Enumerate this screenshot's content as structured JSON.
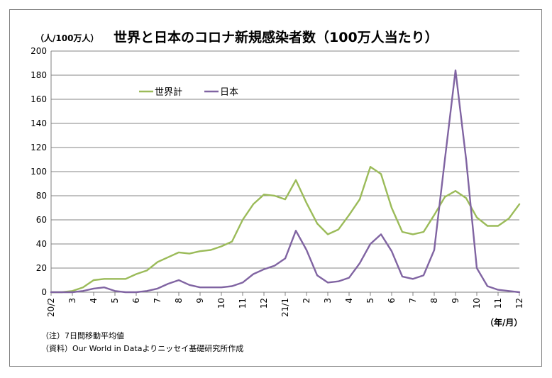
{
  "chart_data": {
    "type": "line",
    "title": "世界と日本のコロナ新規感染者数（100万人当たり）",
    "ylabel": "（人/100万人）",
    "xlabel": "（年/月）",
    "ylim": [
      0,
      200
    ],
    "yticks": [
      0,
      20,
      40,
      60,
      80,
      100,
      120,
      140,
      160,
      180,
      200
    ],
    "grid": true,
    "legend_position": "top-left",
    "x_tick_labels": [
      "20/2",
      "3",
      "4",
      "5",
      "6",
      "7",
      "8",
      "9",
      "10",
      "11",
      "12",
      "21/1",
      "2",
      "3",
      "4",
      "5",
      "6",
      "7",
      "8",
      "9",
      "10",
      "11",
      "12"
    ],
    "x": [
      "20/2",
      "20/2.5",
      "20/3",
      "20/3.5",
      "20/4",
      "20/4.5",
      "20/5",
      "20/5.5",
      "20/6",
      "20/6.5",
      "20/7",
      "20/7.5",
      "20/8",
      "20/8.5",
      "20/9",
      "20/9.5",
      "20/10",
      "20/10.5",
      "20/11",
      "20/11.5",
      "20/12",
      "20/12.5",
      "21/1",
      "21/1.5",
      "21/2",
      "21/2.5",
      "21/3",
      "21/3.5",
      "21/4",
      "21/4.5",
      "21/5",
      "21/5.5",
      "21/6",
      "21/6.5",
      "21/7",
      "21/7.5",
      "21/8",
      "21/8.5",
      "21/9",
      "21/9.5",
      "21/10",
      "21/10.5",
      "21/11",
      "21/11.5",
      "21/12"
    ],
    "series": [
      {
        "name": "世界計",
        "color": "#9bbb59",
        "values": [
          0,
          0,
          1,
          4,
          10,
          11,
          11,
          11,
          15,
          18,
          25,
          29,
          33,
          32,
          34,
          35,
          38,
          42,
          60,
          73,
          81,
          80,
          77,
          93,
          74,
          57,
          48,
          52,
          64,
          77,
          104,
          98,
          70,
          50,
          48,
          50,
          64,
          79,
          84,
          78,
          62,
          55,
          55,
          61,
          73
        ]
      },
      {
        "name": "日本",
        "color": "#8064a2",
        "values": [
          0,
          0,
          0,
          1,
          3,
          4,
          1,
          0,
          0,
          1,
          3,
          7,
          10,
          6,
          4,
          4,
          4,
          5,
          8,
          15,
          19,
          22,
          28,
          51,
          35,
          14,
          8,
          9,
          12,
          24,
          40,
          48,
          34,
          13,
          11,
          14,
          35,
          110,
          184,
          110,
          20,
          5,
          2,
          1,
          0
        ]
      }
    ]
  },
  "notes": {
    "line1": "（注）7日間移動平均値",
    "line2": "（資料）Our World in Dataよりニッセイ基礎研究所作成"
  }
}
